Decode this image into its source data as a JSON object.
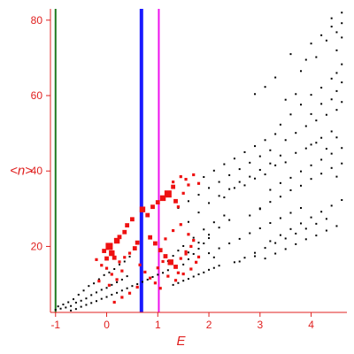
{
  "chart_data": {
    "type": "scatter",
    "xlabel": "E",
    "ylabel": "<n>",
    "xlim": [
      -1.1,
      4.7
    ],
    "ylim": [
      2.5,
      83
    ],
    "x_ticks": [
      -1,
      0,
      1,
      2,
      3,
      4
    ],
    "x_tick_labels": [
      "-1",
      "0",
      "1",
      "2",
      "3",
      "4"
    ],
    "y_ticks": [
      20,
      40,
      60,
      80
    ],
    "y_tick_labels": [
      "20",
      "40",
      "60",
      "80"
    ],
    "grid": false,
    "legend": "none",
    "axis_color": "#e0201f",
    "vertical_lines": [
      {
        "x": -1.0,
        "color": "#1f7a1f"
      },
      {
        "x": 0.68,
        "color": "#1a1aff"
      },
      {
        "x": 1.02,
        "color": "#ee11ee"
      }
    ],
    "series": [
      {
        "color": "#000000",
        "marker": "small-square",
        "points": [
          [
            -1.0,
            3.2
          ],
          [
            -0.95,
            4.1
          ],
          [
            -0.9,
            3.5
          ],
          [
            -0.85,
            4.6
          ],
          [
            -0.8,
            3.8
          ],
          [
            -0.75,
            5.2
          ],
          [
            -0.7,
            4.2
          ],
          [
            -0.65,
            6.0
          ],
          [
            -0.6,
            5.1
          ],
          [
            -0.55,
            7.2
          ],
          [
            -0.5,
            5.6
          ],
          [
            -0.45,
            8.3
          ],
          [
            -0.4,
            6.2
          ],
          [
            -0.35,
            9.5
          ],
          [
            -0.3,
            7.1
          ],
          [
            -0.25,
            10.2
          ],
          [
            -0.2,
            7.8
          ],
          [
            -0.15,
            11.3
          ],
          [
            -0.1,
            8.5
          ],
          [
            -0.05,
            12.4
          ],
          [
            0.0,
            9.0
          ],
          [
            0.05,
            13.1
          ],
          [
            0.1,
            9.8
          ],
          [
            0.15,
            14.0
          ],
          [
            0.2,
            10.5
          ],
          [
            0.25,
            15.2
          ],
          [
            0.3,
            11.2
          ],
          [
            0.35,
            16.0
          ],
          [
            0.4,
            12.1
          ],
          [
            0.45,
            17.3
          ],
          [
            -0.7,
            3.0
          ],
          [
            -0.6,
            3.4
          ],
          [
            -0.5,
            4.0
          ],
          [
            -0.4,
            4.5
          ],
          [
            -0.3,
            5.0
          ],
          [
            -0.2,
            5.5
          ],
          [
            -0.1,
            6.1
          ],
          [
            0.0,
            6.6
          ],
          [
            0.1,
            7.2
          ],
          [
            0.2,
            7.7
          ],
          [
            0.3,
            8.3
          ],
          [
            0.4,
            8.9
          ],
          [
            0.5,
            9.5
          ],
          [
            0.6,
            10.0
          ],
          [
            0.7,
            10.6
          ],
          [
            0.8,
            11.2
          ],
          [
            0.9,
            11.9
          ],
          [
            1.0,
            12.5
          ],
          [
            1.1,
            13.0
          ],
          [
            1.2,
            13.7
          ],
          [
            1.3,
            9.8
          ],
          [
            1.4,
            10.3
          ],
          [
            1.5,
            10.9
          ],
          [
            1.6,
            11.4
          ],
          [
            1.7,
            12.0
          ],
          [
            1.8,
            12.6
          ],
          [
            1.9,
            13.1
          ],
          [
            2.0,
            13.8
          ],
          [
            2.1,
            14.3
          ],
          [
            2.2,
            14.9
          ],
          [
            1.5,
            20.1
          ],
          [
            1.6,
            18.4
          ],
          [
            1.7,
            22.3
          ],
          [
            1.8,
            21.0
          ],
          [
            1.9,
            24.5
          ],
          [
            2.0,
            23.1
          ],
          [
            2.1,
            26.4
          ],
          [
            2.2,
            25.0
          ],
          [
            2.3,
            28.2
          ],
          [
            2.4,
            27.0
          ],
          [
            1.6,
            26.5
          ],
          [
            1.8,
            29.0
          ],
          [
            2.0,
            31.5
          ],
          [
            2.2,
            33.4
          ],
          [
            2.4,
            35.2
          ],
          [
            2.6,
            37.1
          ],
          [
            2.8,
            38.5
          ],
          [
            3.0,
            40.3
          ],
          [
            3.2,
            42.0
          ],
          [
            3.4,
            44.1
          ],
          [
            2.0,
            18.2
          ],
          [
            2.2,
            19.5
          ],
          [
            2.4,
            20.8
          ],
          [
            2.6,
            22.0
          ],
          [
            2.8,
            23.5
          ],
          [
            3.0,
            24.8
          ],
          [
            3.2,
            26.2
          ],
          [
            3.4,
            27.5
          ],
          [
            3.6,
            28.9
          ],
          [
            3.8,
            30.2
          ],
          [
            2.5,
            15.8
          ],
          [
            2.7,
            17.0
          ],
          [
            2.9,
            18.3
          ],
          [
            3.1,
            19.6
          ],
          [
            3.3,
            20.9
          ],
          [
            3.5,
            22.1
          ],
          [
            3.7,
            23.4
          ],
          [
            3.9,
            24.7
          ],
          [
            4.1,
            26.0
          ],
          [
            4.3,
            27.3
          ],
          [
            2.3,
            33.0
          ],
          [
            2.5,
            35.5
          ],
          [
            2.7,
            36.2
          ],
          [
            2.9,
            38.0
          ],
          [
            3.1,
            39.1
          ],
          [
            3.3,
            41.5
          ],
          [
            3.5,
            42.3
          ],
          [
            3.7,
            44.8
          ],
          [
            3.9,
            46.0
          ],
          [
            4.1,
            47.5
          ],
          [
            3.0,
            30.1
          ],
          [
            3.2,
            31.8
          ],
          [
            3.4,
            33.2
          ],
          [
            3.6,
            34.9
          ],
          [
            3.8,
            36.1
          ],
          [
            4.0,
            37.9
          ],
          [
            4.2,
            39.3
          ],
          [
            4.4,
            40.8
          ],
          [
            4.6,
            42.0
          ],
          [
            4.5,
            38.5
          ],
          [
            3.4,
            52.3
          ],
          [
            3.6,
            55.0
          ],
          [
            3.8,
            57.6
          ],
          [
            4.0,
            60.2
          ],
          [
            4.2,
            62.1
          ],
          [
            4.4,
            64.5
          ],
          [
            4.5,
            66.0
          ],
          [
            4.6,
            68.3
          ],
          [
            3.9,
            69.5
          ],
          [
            4.1,
            70.2
          ],
          [
            4.0,
            55.1
          ],
          [
            4.2,
            57.8
          ],
          [
            4.4,
            59.0
          ],
          [
            4.5,
            61.2
          ],
          [
            4.6,
            63.5
          ],
          [
            4.3,
            74.6
          ],
          [
            4.5,
            76.8
          ],
          [
            4.6,
            79.2
          ],
          [
            4.4,
            80.5
          ],
          [
            4.6,
            82.0
          ],
          [
            2.9,
            60.4
          ],
          [
            3.1,
            62.3
          ],
          [
            3.3,
            64.8
          ],
          [
            3.6,
            71.0
          ],
          [
            3.8,
            66.5
          ],
          [
            4.0,
            73.8
          ],
          [
            4.2,
            76.0
          ],
          [
            4.4,
            78.3
          ],
          [
            4.5,
            72.0
          ],
          [
            4.6,
            75.4
          ],
          [
            3.5,
            48.2
          ],
          [
            3.7,
            50.1
          ],
          [
            3.9,
            51.9
          ],
          [
            4.1,
            53.4
          ],
          [
            4.3,
            54.9
          ],
          [
            4.5,
            56.2
          ],
          [
            4.6,
            58.3
          ],
          [
            4.4,
            50.5
          ],
          [
            4.2,
            48.8
          ],
          [
            4.0,
            47.0
          ],
          [
            3.2,
            35.0
          ],
          [
            3.4,
            36.8
          ],
          [
            3.6,
            38.2
          ],
          [
            3.8,
            39.9
          ],
          [
            4.0,
            41.5
          ],
          [
            4.2,
            43.0
          ],
          [
            4.4,
            44.6
          ],
          [
            4.6,
            46.1
          ],
          [
            4.5,
            48.9
          ],
          [
            4.3,
            45.9
          ],
          [
            2.8,
            28.2
          ],
          [
            3.0,
            29.9
          ],
          [
            3.2,
            21.4
          ],
          [
            3.4,
            23.0
          ],
          [
            3.6,
            24.6
          ],
          [
            3.8,
            26.1
          ],
          [
            4.0,
            27.7
          ],
          [
            4.2,
            29.2
          ],
          [
            4.4,
            30.8
          ],
          [
            4.6,
            32.3
          ],
          [
            1.9,
            38.4
          ],
          [
            2.1,
            40.1
          ],
          [
            2.3,
            41.8
          ],
          [
            2.5,
            43.3
          ],
          [
            2.7,
            45.0
          ],
          [
            2.9,
            46.6
          ],
          [
            3.1,
            48.2
          ],
          [
            3.3,
            49.8
          ],
          [
            3.5,
            58.9
          ],
          [
            3.7,
            60.4
          ],
          [
            1.4,
            30.2
          ],
          [
            1.6,
            32.0
          ],
          [
            1.8,
            33.7
          ],
          [
            2.0,
            35.5
          ],
          [
            2.2,
            37.1
          ],
          [
            2.4,
            38.9
          ],
          [
            2.6,
            40.5
          ],
          [
            2.8,
            42.2
          ],
          [
            3.0,
            43.9
          ],
          [
            3.2,
            45.5
          ],
          [
            1.2,
            16.1
          ],
          [
            1.3,
            17.5
          ],
          [
            1.4,
            18.9
          ],
          [
            1.5,
            15.2
          ],
          [
            1.6,
            16.6
          ],
          [
            1.7,
            18.0
          ],
          [
            1.8,
            19.4
          ],
          [
            1.9,
            20.8
          ],
          [
            2.0,
            22.2
          ],
          [
            2.1,
            17.1
          ],
          [
            2.6,
            16.0
          ],
          [
            2.9,
            17.4
          ],
          [
            3.1,
            16.8
          ],
          [
            3.3,
            18.1
          ],
          [
            3.5,
            19.3
          ],
          [
            3.7,
            20.6
          ],
          [
            3.9,
            21.9
          ],
          [
            4.1,
            22.9
          ],
          [
            4.3,
            24.2
          ],
          [
            4.5,
            25.4
          ]
        ]
      },
      {
        "color": "#ee1111",
        "marker": "square-sized",
        "points": [
          [
            -0.2,
            16.5,
            2
          ],
          [
            -0.1,
            15.0,
            2
          ],
          [
            0.0,
            14.2,
            2
          ],
          [
            0.1,
            12.6,
            2
          ],
          [
            -0.15,
            10.8,
            2
          ],
          [
            0.05,
            9.7,
            2
          ],
          [
            0.2,
            11.2,
            2
          ],
          [
            0.3,
            13.5,
            2
          ],
          [
            -0.05,
            18.8,
            3
          ],
          [
            0.05,
            20.0,
            5
          ],
          [
            0.1,
            18.2,
            4
          ],
          [
            0.15,
            17.0,
            3
          ],
          [
            0.0,
            16.8,
            3
          ],
          [
            0.2,
            21.5,
            4
          ],
          [
            0.25,
            22.5,
            3
          ],
          [
            0.35,
            23.8,
            3
          ],
          [
            0.4,
            25.6,
            3
          ],
          [
            0.5,
            27.2,
            3
          ],
          [
            0.6,
            21.0,
            3
          ],
          [
            0.55,
            19.5,
            3
          ],
          [
            0.45,
            18.2,
            2
          ],
          [
            0.35,
            17.1,
            2
          ],
          [
            0.25,
            15.9,
            2
          ],
          [
            0.65,
            15.1,
            2
          ],
          [
            0.7,
            29.8,
            4
          ],
          [
            0.8,
            28.3,
            3
          ],
          [
            0.9,
            30.5,
            3
          ],
          [
            1.0,
            31.7,
            3
          ],
          [
            1.1,
            32.8,
            4
          ],
          [
            1.2,
            33.9,
            5
          ],
          [
            1.3,
            35.8,
            3
          ],
          [
            1.35,
            32.0,
            3
          ],
          [
            1.4,
            30.5,
            2
          ],
          [
            1.5,
            34.1,
            2
          ],
          [
            1.6,
            36.3,
            2
          ],
          [
            1.55,
            37.8,
            2
          ],
          [
            1.45,
            38.5,
            2
          ],
          [
            1.3,
            37.1,
            2
          ],
          [
            1.7,
            39.0,
            2
          ],
          [
            1.8,
            36.7,
            2
          ],
          [
            0.85,
            22.4,
            3
          ],
          [
            0.95,
            20.8,
            3
          ],
          [
            1.05,
            19.0,
            3
          ],
          [
            1.15,
            17.4,
            3
          ],
          [
            1.25,
            15.8,
            4
          ],
          [
            1.35,
            14.6,
            3
          ],
          [
            1.45,
            16.8,
            2
          ],
          [
            1.55,
            18.6,
            2
          ],
          [
            1.15,
            22.0,
            2
          ],
          [
            1.3,
            24.2,
            2
          ],
          [
            1.45,
            25.8,
            2
          ],
          [
            1.6,
            23.2,
            2
          ],
          [
            1.7,
            21.6,
            2
          ],
          [
            1.65,
            20.0,
            2
          ],
          [
            1.55,
            18.0,
            2
          ],
          [
            1.4,
            13.0,
            2
          ],
          [
            0.75,
            13.2,
            2
          ],
          [
            0.85,
            11.6,
            2
          ],
          [
            0.95,
            10.3,
            2
          ],
          [
            1.05,
            8.9,
            2
          ],
          [
            0.6,
            9.2,
            2
          ],
          [
            0.45,
            7.6,
            2
          ],
          [
            0.3,
            6.5,
            2
          ],
          [
            0.15,
            5.2,
            2
          ],
          [
            1.0,
            14.3,
            2
          ],
          [
            1.1,
            16.0,
            2
          ],
          [
            1.2,
            12.1,
            2
          ],
          [
            1.35,
            11.0,
            2
          ],
          [
            1.5,
            12.7,
            2
          ],
          [
            1.65,
            14.0,
            2
          ],
          [
            1.75,
            15.8,
            2
          ],
          [
            1.8,
            17.2,
            2
          ]
        ]
      }
    ]
  }
}
